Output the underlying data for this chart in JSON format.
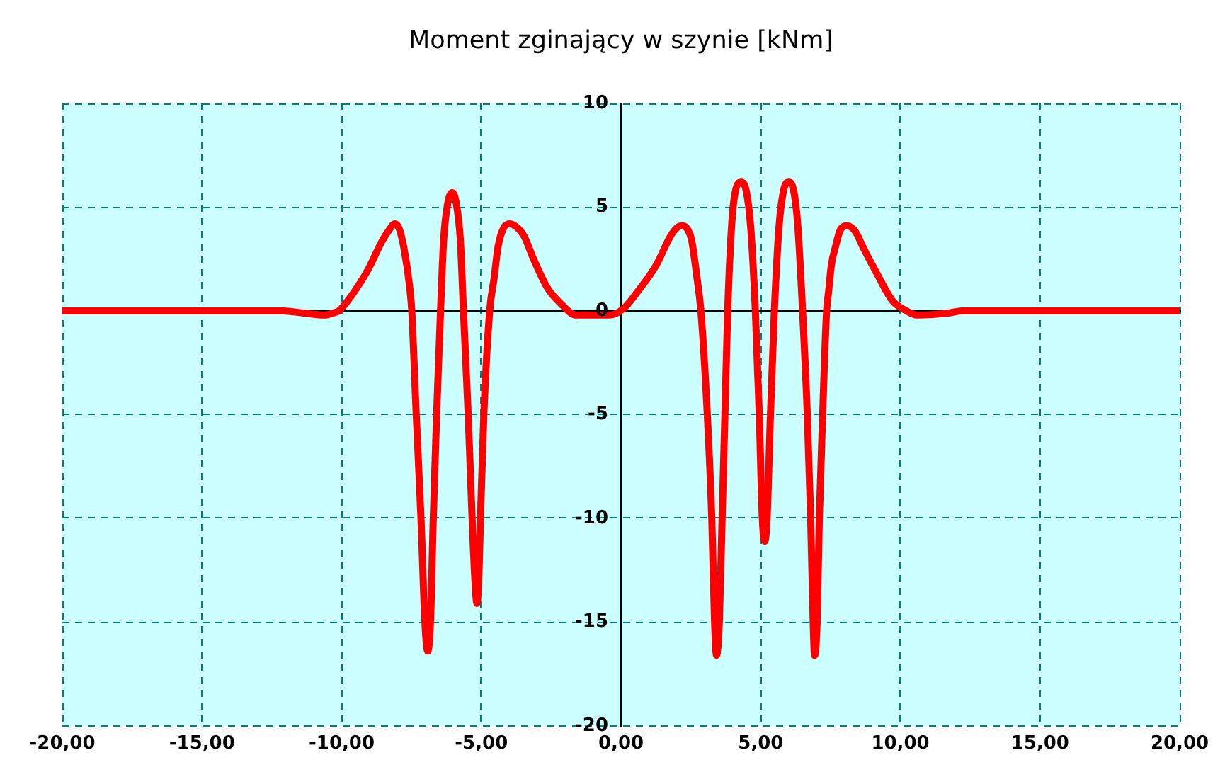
{
  "chart_data": {
    "type": "line",
    "title": "Moment zginający w szynie [kNm]",
    "x": [
      -20,
      -12.1,
      -11.4,
      -10.6,
      -10.3,
      -10.1,
      -9.56,
      -9.05,
      -8.54,
      -8.3,
      -8.1,
      -7.95,
      -7.78,
      -7.56,
      -7.49,
      -7.33,
      -7.16,
      -7.02,
      -6.92,
      -6.82,
      -6.72,
      -6.6,
      -6.46,
      -6.35,
      -6.2,
      -6.04,
      -5.9,
      -5.75,
      -5.64,
      -5.47,
      -5.33,
      -5.22,
      -5.16,
      -5.1,
      -5.03,
      -4.91,
      -4.7,
      -4.54,
      -4.4,
      -4.2,
      -3.98,
      -3.7,
      -3.47,
      -3.13,
      -2.63,
      -2.12,
      -1.61,
      -0.4,
      0.08,
      0.58,
      1.26,
      1.77,
      2,
      2.19,
      2.4,
      2.53,
      2.7,
      2.86,
      3.09,
      3.25,
      3.35,
      3.42,
      3.52,
      3.62,
      3.72,
      3.82,
      3.96,
      4.1,
      4.3,
      4.48,
      4.64,
      4.81,
      4.95,
      5.06,
      5.15,
      5.23,
      5.35,
      5.49,
      5.66,
      5.82,
      6,
      6.18,
      6.33,
      6.5,
      6.67,
      6.79,
      6.88,
      6.93,
      7.02,
      7.1,
      7.22,
      7.36,
      7.43,
      7.53,
      7.68,
      7.85,
      8.1,
      8.4,
      8.69,
      9.2,
      9.71,
      10.22,
      10.58,
      11.76,
      12.2,
      20
    ],
    "series": [
      {
        "color": "#ff0000",
        "values": [
          0,
          0,
          -0.1,
          -0.2,
          -0.1,
          0,
          0.9,
          2,
          3.4,
          3.9,
          4.2,
          4,
          3.1,
          1.1,
          0,
          -5,
          -10,
          -15,
          -16.4,
          -15,
          -10,
          -5,
          0,
          3.4,
          5.2,
          5.7,
          5.2,
          3.4,
          0,
          -5,
          -10,
          -13.2,
          -14.1,
          -13.2,
          -10,
          -5,
          0,
          1.6,
          3.1,
          4,
          4.2,
          4,
          3.6,
          2.5,
          1.1,
          0.3,
          -0.2,
          -0.2,
          0.1,
          0.9,
          2.2,
          3.6,
          4,
          4.1,
          3.9,
          3.4,
          1.8,
          0,
          -5,
          -10,
          -15,
          -16.6,
          -15,
          -10,
          -5,
          0,
          4.1,
          5.8,
          6.2,
          5.8,
          4.1,
          0,
          -5,
          -10,
          -11.1,
          -10,
          -5,
          0,
          4.1,
          5.8,
          6.2,
          5.8,
          4.1,
          0,
          -5,
          -10,
          -15,
          -16.6,
          -15,
          -10,
          -5,
          0,
          0.9,
          2.2,
          3.1,
          3.9,
          4.1,
          3.8,
          3,
          1.7,
          0.5,
          0,
          -0.2,
          -0.1,
          0,
          0
        ]
      }
    ],
    "xlim": [
      -20,
      20
    ],
    "xticks": [
      {
        "value": -20,
        "label": "-20,00"
      },
      {
        "value": -15,
        "label": "-15,00"
      },
      {
        "value": -10,
        "label": "-10,00"
      },
      {
        "value": -5,
        "label": "-5,00"
      },
      {
        "value": 0,
        "label": "0,00"
      },
      {
        "value": 5,
        "label": "5,00"
      },
      {
        "value": 10,
        "label": "10,00"
      },
      {
        "value": 15,
        "label": "15,00"
      },
      {
        "value": 20,
        "label": "20,00"
      }
    ],
    "ylim": [
      -20,
      10
    ],
    "yticks": [
      -20,
      -15,
      -10,
      -5,
      0,
      5,
      10
    ],
    "grid": true,
    "marker": "none",
    "line_style": "solid"
  }
}
